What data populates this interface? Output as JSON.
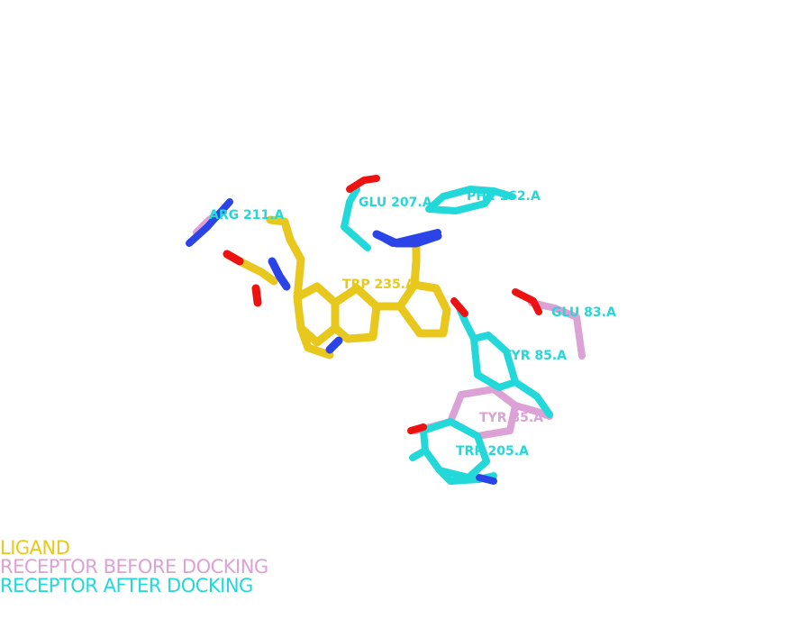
{
  "colors": {
    "ligand": "#e8c81c",
    "receptor_before": "#dca2d6",
    "receptor_after": "#22d8d8",
    "oxygen": "#ee1111",
    "nitrogen": "#2a44e8"
  },
  "residue_labels": {
    "arg211": "ARG 211.A",
    "glu207": "GLU 207.A",
    "phe162": "PHE 162.A",
    "trp235": "TRP 235.A",
    "glu83": "GLU 83.A",
    "tyr85_after": "TYR 85.A",
    "tyr85_before": "TYR 85.A",
    "trp205": "TRP 205.A"
  },
  "legend": {
    "ligand": "LIGAND",
    "receptor_before": "RECEPTOR BEFORE DOCKING",
    "receptor_after": "RECEPTOR AFTER DOCKING"
  }
}
